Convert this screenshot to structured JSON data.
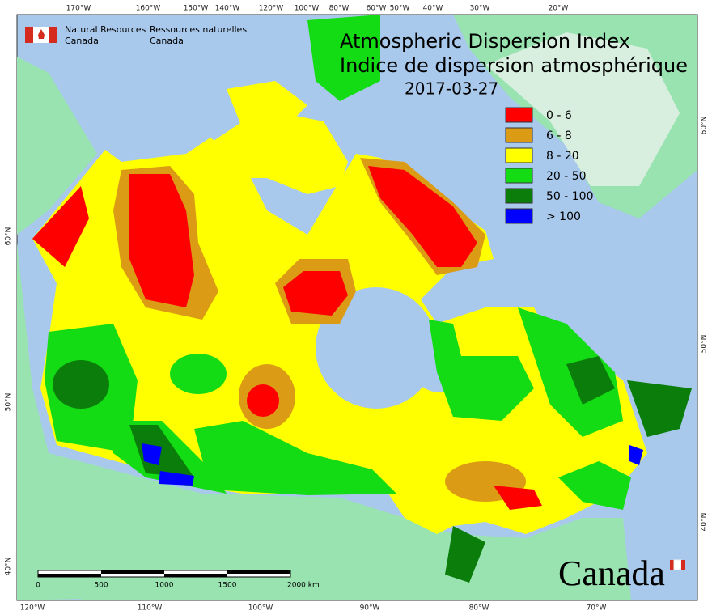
{
  "header": {
    "agency_en": [
      "Natural Resources",
      "Canada"
    ],
    "agency_fr": [
      "Ressources naturelles",
      "Canada"
    ]
  },
  "title": {
    "line1": "Atmospheric Dispersion Index",
    "line2": "Indice de dispersion atmosphérique",
    "date": "2017-03-27"
  },
  "legend": [
    {
      "label": "0 - 6",
      "color": "#ff0000"
    },
    {
      "label": "6 - 8",
      "color": "#dc9b14"
    },
    {
      "label": "8 - 20",
      "color": "#ffff00"
    },
    {
      "label": "20 - 50",
      "color": "#14dc14"
    },
    {
      "label": "50 - 100",
      "color": "#0a7d0a"
    },
    {
      "label": "> 100",
      "color": "#0000ff"
    }
  ],
  "graticule": {
    "top": [
      "170°W",
      "160°W",
      "150°W",
      "140°W",
      "120°W",
      "100°W",
      "80°W",
      "60°W",
      "50°W",
      "40°W",
      "30°W",
      "20°W"
    ],
    "bottom": [
      "120°W",
      "110°W",
      "100°W",
      "90°W",
      "80°W",
      "70°W"
    ],
    "left": [
      "60°N",
      "50°N",
      "40°N"
    ],
    "right": [
      "60°N",
      "50°N",
      "40°N"
    ]
  },
  "scale_bar": [
    "0",
    "500",
    "1000",
    "1500",
    "2000 km"
  ],
  "wordmark": "Canada"
}
